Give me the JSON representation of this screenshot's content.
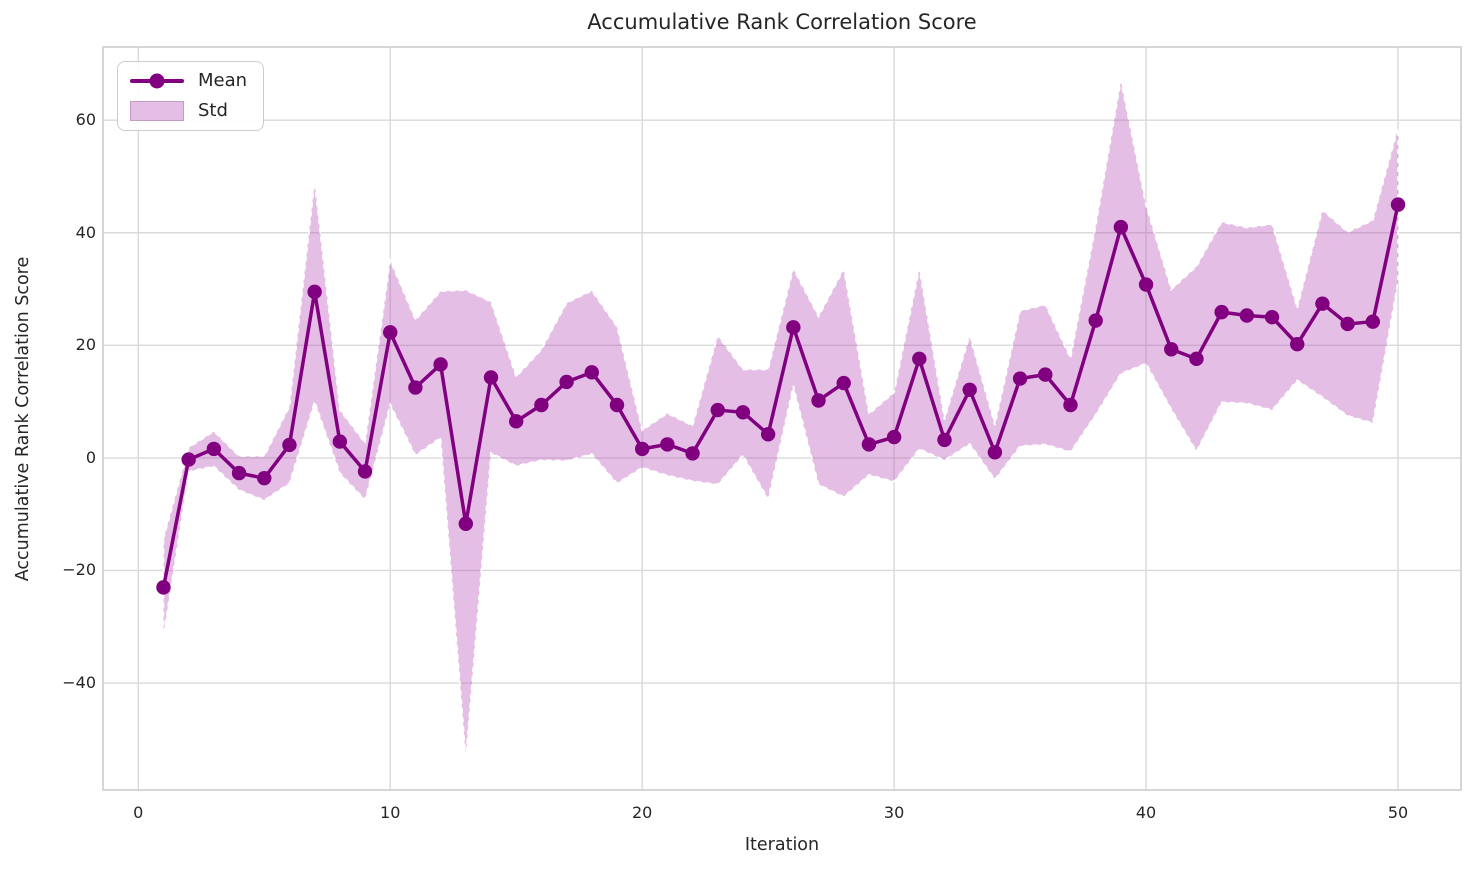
{
  "figure": {
    "title": "Accumulative Rank Correlation Score",
    "xlabel": "Iteration",
    "ylabel": "Accumulative Rank Correlation Score"
  },
  "legend": {
    "position": "upper left",
    "items": [
      {
        "label": "Mean",
        "swatch": "line-with-circle-marker"
      },
      {
        "label": "Std",
        "swatch": "filled-patch"
      }
    ]
  },
  "colors": {
    "line": "#800080",
    "marker": "#800080",
    "band_fill": "rgba(186,85,186,0.38)",
    "band_edge": "#ffffff",
    "grid": "#d9d9d9",
    "spine": "#cccccc",
    "text": "#262626",
    "legend_patch_edge": "#c39bc3",
    "background": "#ffffff"
  },
  "chart_data": {
    "type": "line",
    "title": "Accumulative Rank Correlation Score",
    "xlabel": "Iteration",
    "ylabel": "Accumulative Rank Correlation Score",
    "grid": true,
    "legend_position": "upper left",
    "band_rule": "mean ± std",
    "xlim": [
      -1.4,
      52.5
    ],
    "ylim": [
      -59,
      73
    ],
    "x_ticks": [
      0,
      10,
      20,
      30,
      40,
      50
    ],
    "y_ticks": [
      -40,
      -20,
      0,
      20,
      40,
      60
    ],
    "x": [
      1,
      2,
      3,
      4,
      5,
      6,
      7,
      8,
      9,
      10,
      11,
      12,
      13,
      14,
      15,
      16,
      17,
      18,
      19,
      20,
      21,
      22,
      23,
      24,
      25,
      26,
      27,
      28,
      29,
      30,
      31,
      32,
      33,
      34,
      35,
      36,
      37,
      38,
      39,
      40,
      41,
      42,
      43,
      44,
      45,
      46,
      47,
      48,
      49,
      50
    ],
    "series": [
      {
        "name": "Mean",
        "values": [
          -23.0,
          -0.3,
          1.6,
          -2.7,
          -3.6,
          2.3,
          29.5,
          2.9,
          -2.4,
          22.3,
          12.5,
          16.6,
          -11.7,
          14.3,
          6.5,
          9.4,
          13.5,
          15.2,
          9.4,
          1.6,
          2.4,
          0.8,
          8.5,
          8.1,
          4.2,
          23.2,
          10.2,
          13.3,
          2.4,
          3.7,
          17.6,
          3.2,
          12.1,
          1.0,
          14.1,
          14.8,
          9.4,
          24.4,
          41.0,
          30.8,
          19.3,
          17.6,
          25.9,
          25.3,
          25.0,
          20.2,
          27.4,
          23.8,
          24.2,
          45.0
        ]
      },
      {
        "name": "Std",
        "values": [
          8.6,
          2.1,
          3.1,
          3.0,
          3.9,
          6.8,
          19.5,
          5.6,
          5.0,
          12.8,
          12.0,
          13.0,
          41.5,
          13.4,
          7.9,
          9.8,
          14.0,
          14.5,
          13.9,
          3.3,
          5.5,
          4.9,
          13.2,
          7.6,
          11.5,
          10.4,
          14.9,
          20.2,
          5.4,
          7.9,
          16.0,
          3.6,
          9.6,
          4.8,
          12.0,
          12.4,
          8.3,
          16.7,
          26.0,
          14.0,
          10.6,
          16.4,
          16.0,
          15.6,
          16.5,
          6.4,
          16.6,
          16.3,
          18.0,
          13.6
        ]
      }
    ]
  }
}
